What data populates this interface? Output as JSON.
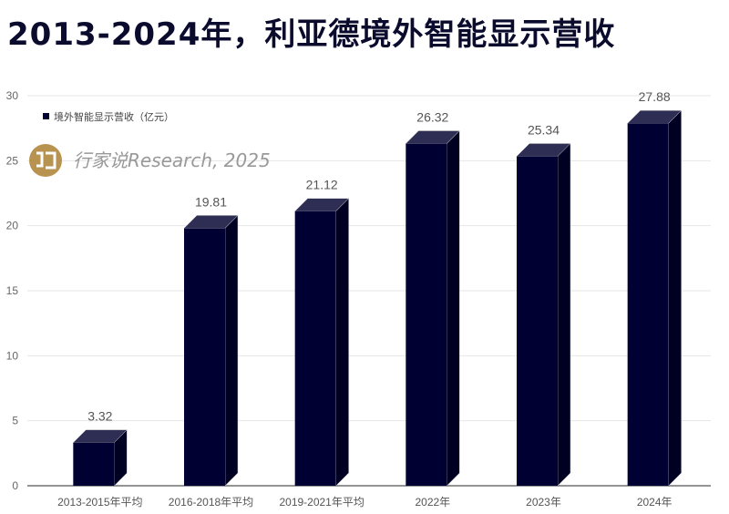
{
  "title": "2013-2024年，利亚德境外智能显示营收",
  "watermark": "行家说Research, 2025",
  "colors": {
    "bar_front": "#000033",
    "bar_top": "#2e2e55",
    "bar_side": "#000022",
    "logo": "#b8924f",
    "title": "#0b0b2e"
  },
  "chart_data": {
    "type": "bar",
    "title": "2013-2024年，利亚德境外智能显示营收",
    "categories": [
      "2013-2015年平均",
      "2016-2018年平均",
      "2019-2021年平均",
      "2022年",
      "2023年",
      "2024年"
    ],
    "series": [
      {
        "name": "境外智能显示营收（亿元）",
        "values": [
          3.32,
          19.81,
          21.12,
          26.32,
          25.34,
          27.88
        ]
      }
    ],
    "data_labels": [
      "3.32",
      "19.81",
      "21.12",
      "26.32",
      "25.34",
      "27.88"
    ],
    "ylim": [
      0,
      30
    ],
    "yticks": [
      0,
      5,
      10,
      15,
      20,
      25,
      30
    ],
    "grid": true,
    "legend": "top-left",
    "style": "3d-bar"
  }
}
